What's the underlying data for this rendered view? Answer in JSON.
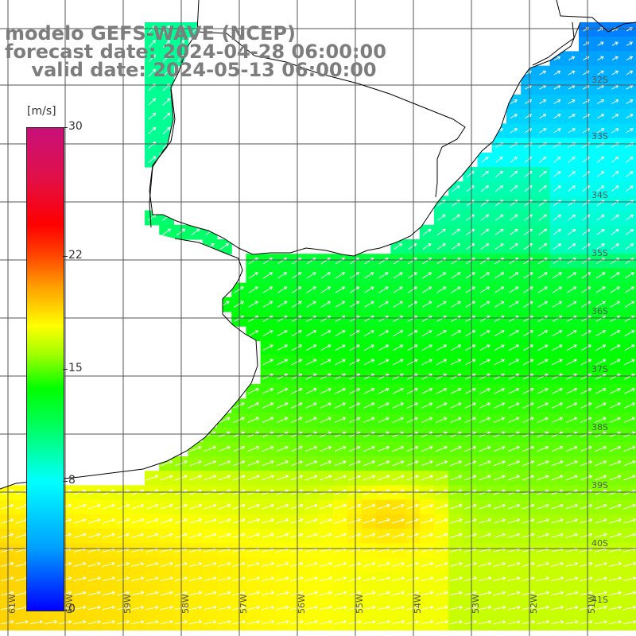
{
  "title": {
    "model": "modelo GEFS-WAVE (NCEP)",
    "forecast_date": "forecast date: 2024-04-28 06:00:00",
    "valid_date": "valid date: 2024-05-13 06:00:00"
  },
  "colorbar": {
    "unit": "[m/s]",
    "range": [
      0,
      30
    ],
    "ticks": [
      {
        "value": 30,
        "label": "30"
      },
      {
        "value": 22,
        "label": "22"
      },
      {
        "value": 15,
        "label": "15"
      },
      {
        "value": 8,
        "label": "8"
      },
      {
        "value": 0,
        "label": "0"
      }
    ],
    "colors": [
      "#0000ff",
      "#00a0ff",
      "#00ffff",
      "#00ff60",
      "#00ff00",
      "#a0ff00",
      "#ffff00",
      "#ffa000",
      "#ff4000",
      "#ff0000",
      "#c8107a"
    ]
  },
  "map": {
    "lon_range": [
      -61,
      -50
    ],
    "lat_range": [
      -41,
      -31
    ],
    "lon_labels": [
      "61W",
      "60W",
      "59W",
      "58W",
      "57W",
      "56W",
      "55W",
      "54W",
      "53W",
      "52W",
      "51W"
    ],
    "lat_labels": [
      "32S",
      "33S",
      "34S",
      "35S",
      "36S",
      "37S",
      "38S",
      "39S",
      "40S",
      "41S"
    ],
    "grid_color": "#555555",
    "coast_color": "#000000",
    "land_color": "#ffffff",
    "arrow_color": "#ffffff",
    "wind_direction": "toward north-east"
  }
}
